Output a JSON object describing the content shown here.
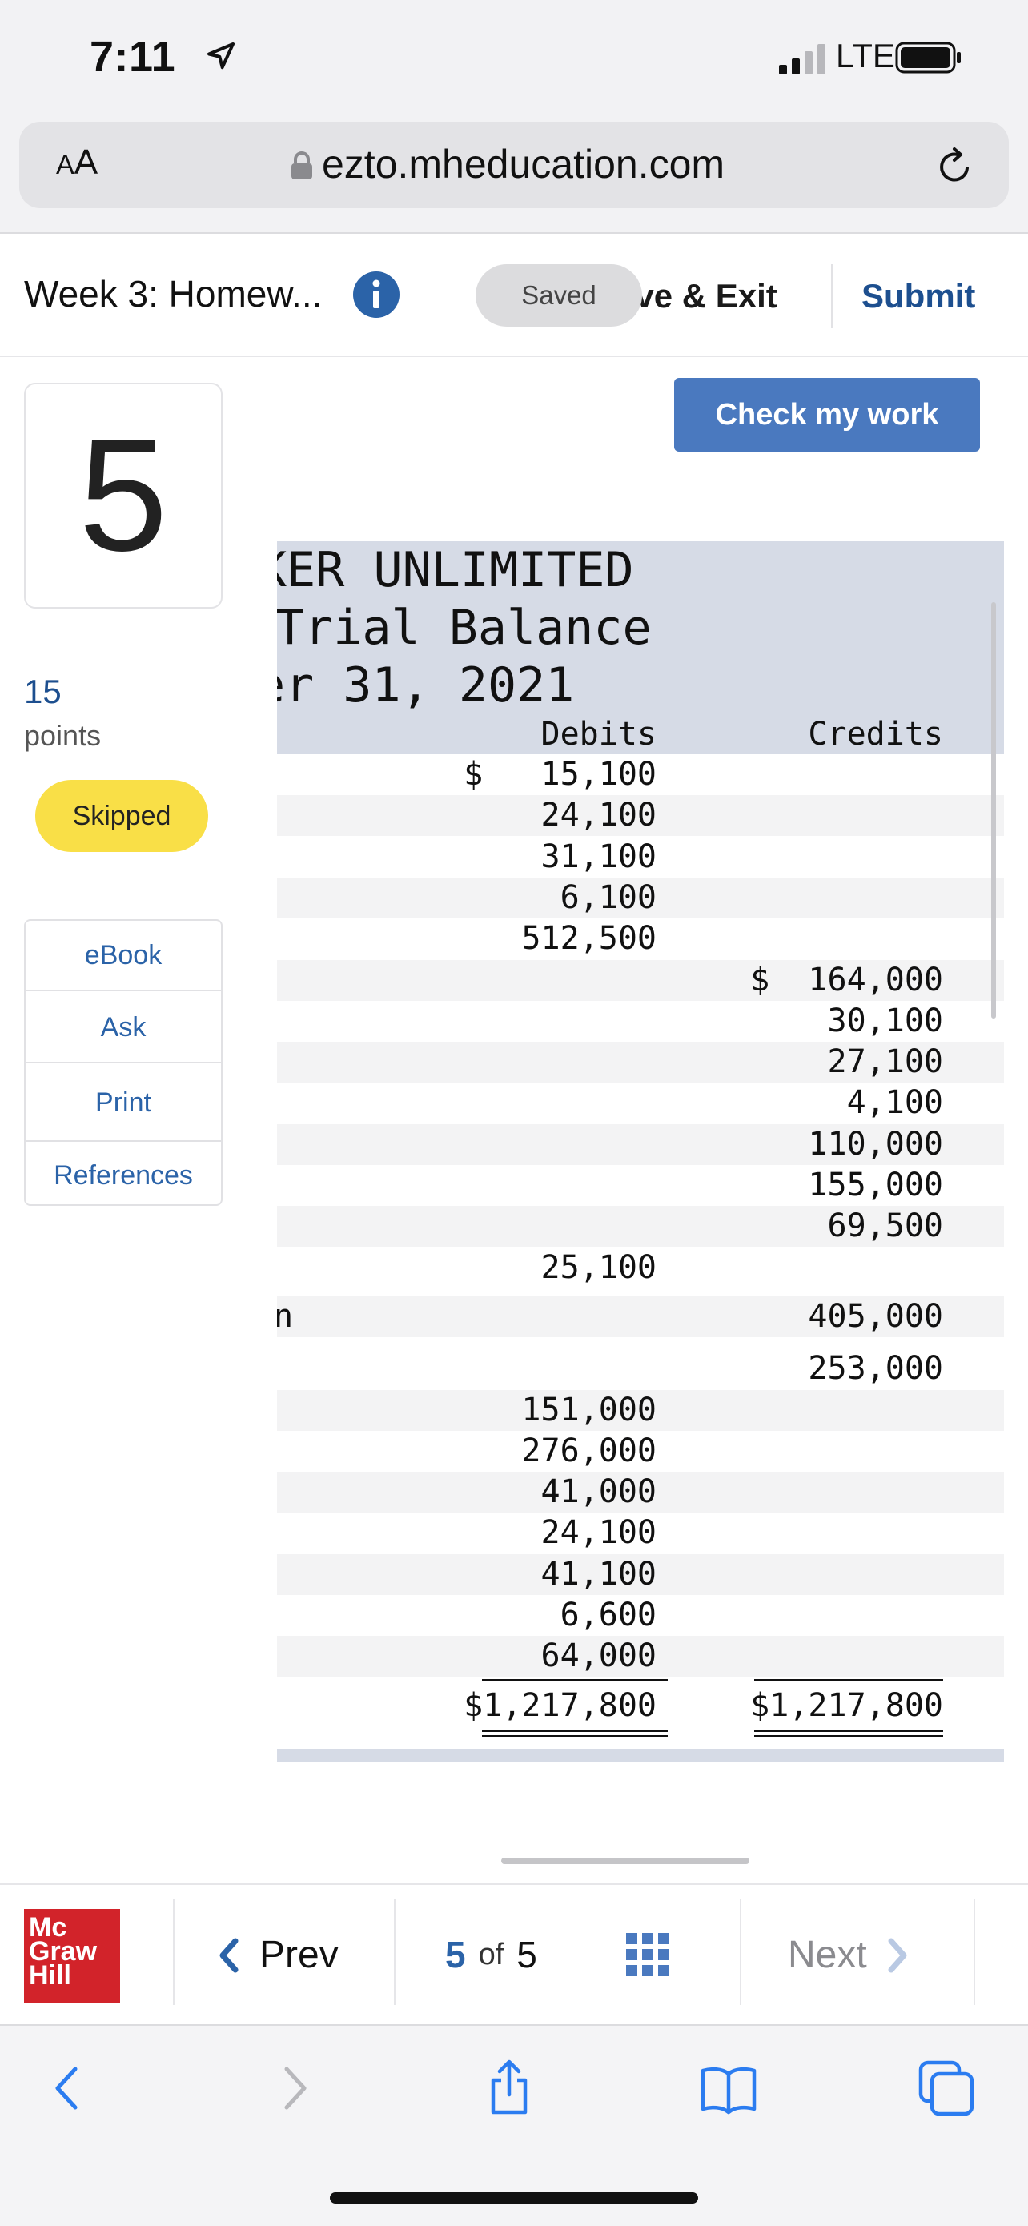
{
  "status_bar": {
    "time": "7:11",
    "network": "LTE"
  },
  "browser": {
    "text_size_label_small": "A",
    "text_size_label_large": "A",
    "url": "ezto.mheducation.com"
  },
  "header": {
    "title": "Week 3: Homew...",
    "saved_label": "Saved",
    "save_exit_label": "ave & Exit",
    "submit_label": "Submit"
  },
  "question": {
    "number": "5",
    "points_value": "15",
    "points_label": "points",
    "status": "Skipped"
  },
  "side_menu": [
    "eBook",
    "Ask",
    "Print",
    "References"
  ],
  "check_button": "Check my work",
  "trial_balance": {
    "title_lines": [
      "KER UNLIMITED",
      "Trial Balance",
      "er 31, 2021"
    ],
    "col_debits": "Debits",
    "col_credits": "Credits",
    "rows": [
      {
        "label": "",
        "debit": "$   15,100",
        "credit": ""
      },
      {
        "label": "",
        "debit": "24,100",
        "credit": ""
      },
      {
        "label": "",
        "debit": "31,100",
        "credit": ""
      },
      {
        "label": "",
        "debit": "6,100",
        "credit": ""
      },
      {
        "label": "",
        "debit": "512,500",
        "credit": ""
      },
      {
        "label": "",
        "debit": "",
        "credit": "$  164,000"
      },
      {
        "label": "",
        "debit": "",
        "credit": "30,100"
      },
      {
        "label": "",
        "debit": "",
        "credit": "27,100"
      },
      {
        "label": "",
        "debit": "",
        "credit": "4,100"
      },
      {
        "label": "",
        "debit": "",
        "credit": "110,000"
      },
      {
        "label": "",
        "debit": "",
        "credit": "155,000"
      },
      {
        "label": "",
        "debit": "",
        "credit": "69,500"
      },
      {
        "label": "",
        "debit": "25,100",
        "credit": ""
      },
      {
        "label": "n",
        "debit": "",
        "credit": "405,000"
      },
      {
        "label": "",
        "debit": "",
        "credit": "253,000"
      },
      {
        "label": "",
        "debit": "151,000",
        "credit": ""
      },
      {
        "label": "",
        "debit": "276,000",
        "credit": ""
      },
      {
        "label": "",
        "debit": "41,000",
        "credit": ""
      },
      {
        "label": "",
        "debit": "24,100",
        "credit": ""
      },
      {
        "label": "",
        "debit": "41,100",
        "credit": ""
      },
      {
        "label": "",
        "debit": "6,600",
        "credit": ""
      },
      {
        "label": "",
        "debit": "64,000",
        "credit": ""
      }
    ],
    "total_debits": "$1,217,800",
    "total_credits": "$1,217,800"
  },
  "footer": {
    "logo_line1": "Mc",
    "logo_line2": "Graw",
    "logo_line3": "Hill",
    "prev_label": "Prev",
    "current_page": "5",
    "of_label": "of",
    "total_pages": "5",
    "next_label": "Next"
  },
  "colors": {
    "accent_blue": "#2b63a8",
    "button_blue": "#4a79bf",
    "skipped_yellow": "#f9df47",
    "logo_red": "#d2232a",
    "table_header": "#d6dbe6"
  }
}
